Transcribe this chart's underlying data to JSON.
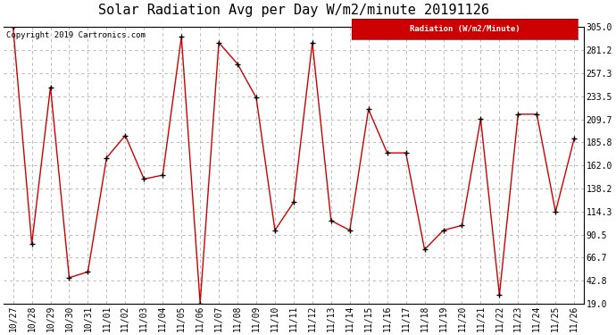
{
  "title": "Solar Radiation Avg per Day W/m2/minute 20191126",
  "copyright": "Copyright 2019 Cartronics.com",
  "legend_label": "Radiation (W/m2/Minute)",
  "dates": [
    "10/27",
    "10/28",
    "10/29",
    "10/30",
    "10/31",
    "11/01",
    "11/02",
    "11/03",
    "11/04",
    "11/05",
    "11/06",
    "11/07",
    "11/08",
    "11/09",
    "11/10",
    "11/11",
    "11/12",
    "11/13",
    "11/14",
    "11/15",
    "11/16",
    "11/17",
    "11/18",
    "11/19",
    "11/20",
    "11/21",
    "11/22",
    "11/23",
    "11/24",
    "11/25",
    "11/26"
  ],
  "values": [
    305.0,
    81.0,
    243.0,
    46.0,
    52.0,
    170.0,
    193.0,
    148.0,
    152.0,
    295.0,
    19.5,
    289.0,
    267.0,
    232.0,
    95.0,
    124.0,
    289.0,
    105.0,
    95.0,
    220.0,
    175.0,
    175.0,
    75.0,
    95.0,
    100.0,
    210.0,
    28.0,
    215.0,
    215.0,
    114.0,
    190.0
  ],
  "line_color": "#cc0000",
  "marker_color": "#000000",
  "bg_color": "#ffffff",
  "grid_color": "#b0b0b0",
  "yticks": [
    19.0,
    42.8,
    66.7,
    90.5,
    114.3,
    138.2,
    162.0,
    185.8,
    209.7,
    233.5,
    257.3,
    281.2,
    305.0
  ],
  "ylim": [
    19.0,
    305.0
  ],
  "legend_bg": "#cc0000",
  "legend_text": "#ffffff",
  "title_fontsize": 11,
  "copyright_fontsize": 6.5,
  "axis_fontsize": 7
}
